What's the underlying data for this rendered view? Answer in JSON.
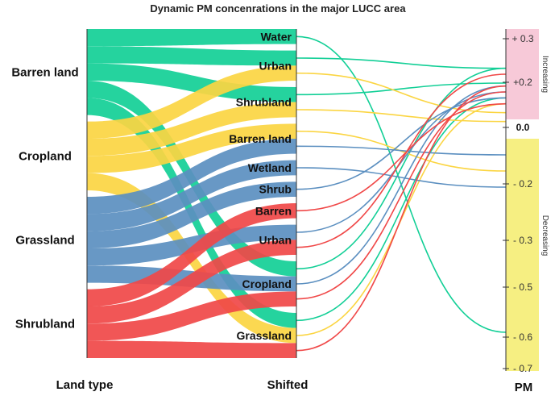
{
  "chart_data": {
    "type": "sankey",
    "title": "Dynamic PM concenrations in the major LUCC area",
    "columns": {
      "left": "Land type",
      "middle": "Shifted",
      "right": "PM"
    },
    "sources": [
      {
        "name": "Barren land",
        "color": "#12cf96"
      },
      {
        "name": "Cropland",
        "color": "#fbd542"
      },
      {
        "name": "Grassland",
        "color": "#5b8fc0"
      },
      {
        "name": "Shrubland",
        "color": "#f04848"
      }
    ],
    "targets": [
      "Water",
      "Urban",
      "Shrubland",
      "Barren land",
      "Wetland",
      "Shrub",
      "Barren",
      "Urban",
      "Cropland",
      "Grassland"
    ],
    "flows": [
      {
        "source": "Barren land",
        "target": "Water",
        "target_index": 0,
        "pm_change": -0.6
      },
      {
        "source": "Barren land",
        "target": "Urban",
        "target_index": 1,
        "pm_change": 0.2
      },
      {
        "source": "Barren land",
        "target": "Shrubland",
        "target_index": 2,
        "pm_change": 0.15
      },
      {
        "source": "Barren land",
        "target": "Cropland",
        "target_index": 8,
        "pm_change": 0.2
      },
      {
        "source": "Barren land",
        "target": "Grassland",
        "target_index": 9,
        "pm_change": 0.1
      },
      {
        "source": "Cropland",
        "target": "Urban",
        "target_index": 1,
        "pm_change": 0.05
      },
      {
        "source": "Cropland",
        "target": "Shrubland",
        "target_index": 2,
        "pm_change": 0.02
      },
      {
        "source": "Cropland",
        "target": "Barren land",
        "target_index": 3,
        "pm_change": -0.1
      },
      {
        "source": "Cropland",
        "target": "Grassland",
        "target_index": 9,
        "pm_change": 0.08
      },
      {
        "source": "Grassland",
        "target": "Barren land",
        "target_index": 3,
        "pm_change": -0.05
      },
      {
        "source": "Grassland",
        "target": "Wetland",
        "target_index": 4,
        "pm_change": -0.15
      },
      {
        "source": "Grassland",
        "target": "Shrub",
        "target_index": 5,
        "pm_change": 0.1
      },
      {
        "source": "Grassland",
        "target": "Urban",
        "target_index": 7,
        "pm_change": 0.12
      },
      {
        "source": "Grassland",
        "target": "Cropland",
        "target_index": 8,
        "pm_change": 0.14
      },
      {
        "source": "Shrubland",
        "target": "Barren",
        "target_index": 6,
        "pm_change": 0.08
      },
      {
        "source": "Shrubland",
        "target": "Urban",
        "target_index": 7,
        "pm_change": 0.18
      },
      {
        "source": "Shrubland",
        "target": "Cropland",
        "target_index": 8,
        "pm_change": 0.12
      },
      {
        "source": "Shrubland",
        "target": "Grassland",
        "target_index": 9,
        "pm_change": 0.14
      }
    ],
    "pm_axis": {
      "ticks": [
        "+ 0.3",
        "+0.2",
        "0.0",
        "- 0.2",
        "- 0.3",
        "- 0.5",
        "- 0.6",
        "- 0.7"
      ],
      "increasing_label": "Increasing",
      "decreasing_label": "Decreasing",
      "increasing_color": "#f7c9d8",
      "decreasing_color": "#f6ef82"
    }
  }
}
